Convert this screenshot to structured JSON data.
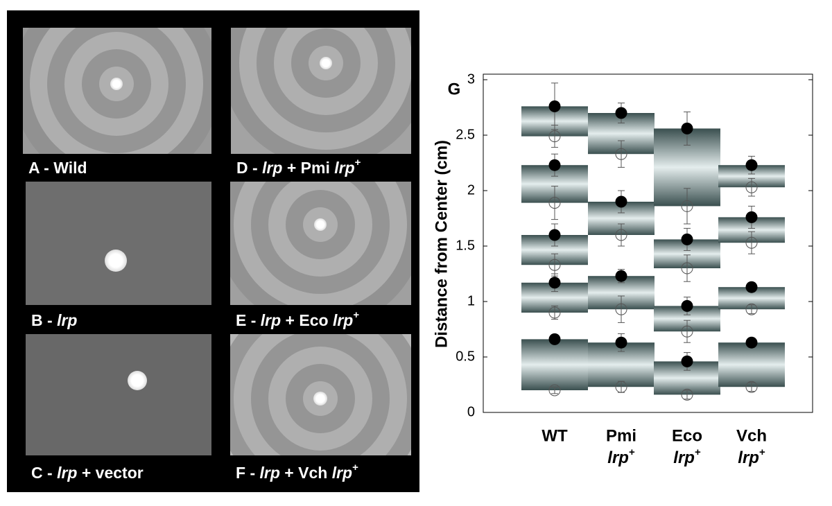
{
  "panels": [
    {
      "caption": [
        {
          "text": "A - Wild"
        }
      ]
    },
    {
      "caption": [
        {
          "text": "B - "
        },
        {
          "text": "lrp",
          "italic": true
        }
      ]
    },
    {
      "caption": [
        {
          "text": "C - "
        },
        {
          "text": "lrp",
          "italic": true
        },
        {
          "text": " + vector"
        }
      ]
    },
    {
      "caption": [
        {
          "text": "D - "
        },
        {
          "text": "lrp",
          "italic": true
        },
        {
          "text": " + Pmi "
        },
        {
          "text": "lrp",
          "italic": true
        },
        {
          "text": "+",
          "sup": true
        }
      ]
    },
    {
      "caption": [
        {
          "text": "E - "
        },
        {
          "text": "lrp",
          "italic": true
        },
        {
          "text": " + Eco "
        },
        {
          "text": "lrp",
          "italic": true
        },
        {
          "text": "+",
          "sup": true
        }
      ]
    },
    {
      "caption": [
        {
          "text": "F - "
        },
        {
          "text": "lrp",
          "italic": true
        },
        {
          "text": " + Vch "
        },
        {
          "text": "lrp",
          "italic": true
        },
        {
          "text": "+",
          "sup": true
        }
      ]
    }
  ],
  "chart_data": {
    "type": "floating-bar",
    "title": "G",
    "y_label": "Distance from Center (cm)",
    "ylim": [
      0,
      3.05
    ],
    "yticks": [
      0,
      0.5,
      1,
      1.5,
      2,
      2.5,
      3
    ],
    "groups": [
      {
        "name": "WT",
        "filled": [
          2.76,
          2.23,
          1.6,
          1.17,
          0.66
        ],
        "filled_err": [
          0.21,
          0.1,
          0.1,
          0.08,
          0.03
        ],
        "open": [
          2.49,
          1.89,
          1.33,
          0.9,
          0.2
        ],
        "open_err": [
          0.1,
          0.15,
          0.1,
          0.06,
          0.03
        ]
      },
      {
        "name": "Pmi",
        "gene": "lrp",
        "sup": "+",
        "filled": [
          2.7,
          1.9,
          1.23,
          0.63,
          null
        ],
        "filled_err": [
          0.09,
          0.1,
          0.06,
          0.08,
          null
        ],
        "open": [
          2.33,
          1.6,
          0.93,
          0.23,
          null
        ],
        "open_err": [
          0.12,
          0.1,
          0.12,
          0.05,
          null
        ]
      },
      {
        "name": "Eco",
        "gene": "lrp",
        "sup": "+",
        "filled": [
          2.56,
          1.56,
          0.96,
          0.46,
          null
        ],
        "filled_err": [
          0.15,
          0.1,
          0.08,
          0.08,
          null
        ],
        "open": [
          1.86,
          1.3,
          0.73,
          0.16,
          null
        ],
        "open_err": [
          0.16,
          0.12,
          0.1,
          0.04,
          null
        ]
      },
      {
        "name": "Vch",
        "gene": "lrp",
        "sup": "+",
        "filled": [
          2.23,
          1.76,
          1.13,
          0.63,
          null
        ],
        "filled_err": [
          0.08,
          0.1,
          0.03,
          0.03,
          null
        ],
        "open": [
          2.03,
          1.53,
          0.93,
          0.23,
          null
        ],
        "open_err": [
          0.08,
          0.1,
          0.04,
          0.04,
          null
        ]
      }
    ],
    "filled_color": "#000000",
    "open_color": "#555555"
  }
}
